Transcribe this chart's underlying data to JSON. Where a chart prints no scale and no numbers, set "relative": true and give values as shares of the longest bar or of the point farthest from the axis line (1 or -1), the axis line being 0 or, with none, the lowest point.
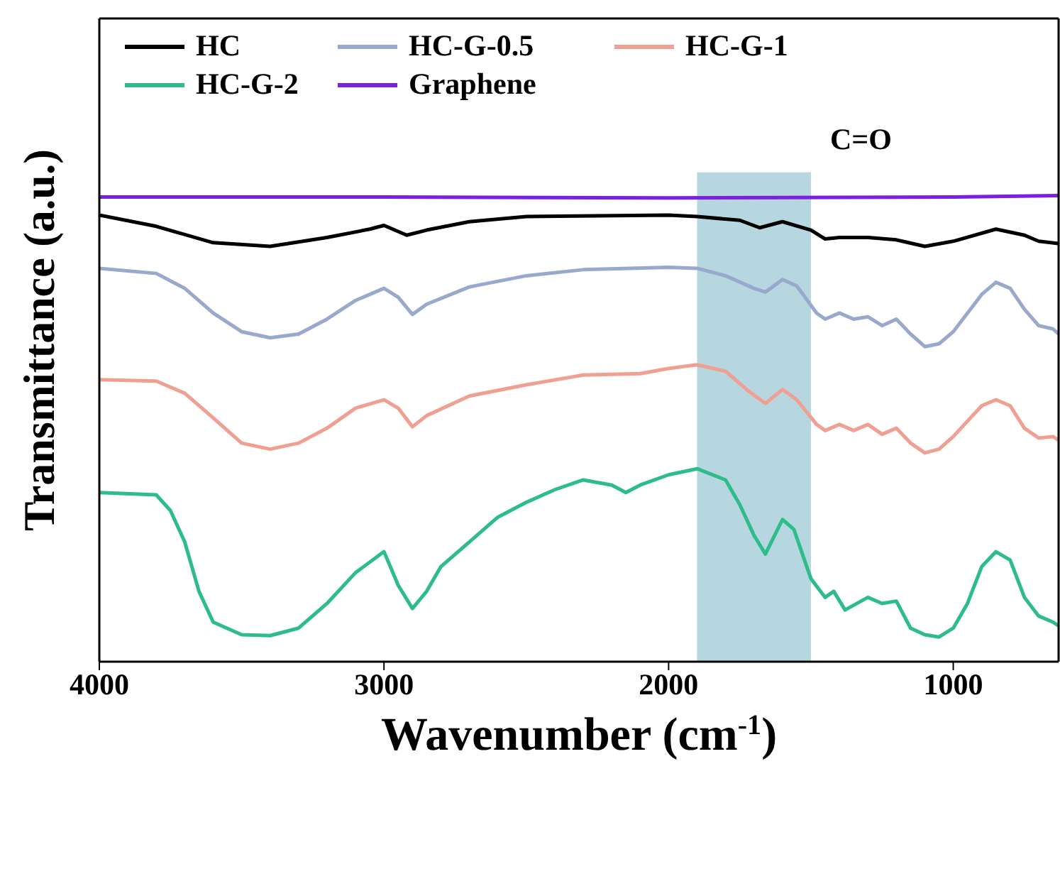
{
  "chart_data": {
    "type": "line",
    "relative": true,
    "xlabel": "Wavenumber (cm$^{-1}$)",
    "ylabel": "Transmittance (a.u.)",
    "xlim": [
      4000,
      630
    ],
    "xticks": [
      4000,
      3000,
      2000,
      1000
    ],
    "legend": "top",
    "bands": [
      {
        "axis": "x",
        "from": 1900,
        "to": 1500,
        "label": "C=O",
        "color": "#a9cfdb"
      }
    ],
    "series": [
      {
        "name": "HC",
        "color": "#000000",
        "x": [
          4000,
          3800,
          3600,
          3400,
          3200,
          3050,
          3000,
          2920,
          2850,
          2700,
          2500,
          2000,
          1900,
          1750,
          1680,
          1600,
          1500,
          1450,
          1400,
          1300,
          1200,
          1100,
          1000,
          850,
          750,
          700,
          630
        ],
        "values": [
          0.958,
          0.934,
          0.899,
          0.891,
          0.91,
          0.928,
          0.936,
          0.915,
          0.926,
          0.944,
          0.955,
          0.958,
          0.955,
          0.947,
          0.931,
          0.944,
          0.926,
          0.907,
          0.91,
          0.91,
          0.905,
          0.891,
          0.902,
          0.928,
          0.915,
          0.902,
          0.897
        ]
      },
      {
        "name": "HC-G-0.5",
        "color": "#99a9cc",
        "x": [
          4000,
          3800,
          3700,
          3600,
          3500,
          3400,
          3300,
          3200,
          3100,
          3000,
          2950,
          2900,
          2850,
          2700,
          2500,
          2300,
          2000,
          1900,
          1800,
          1700,
          1660,
          1600,
          1550,
          1480,
          1450,
          1400,
          1350,
          1300,
          1250,
          1200,
          1150,
          1100,
          1050,
          1000,
          900,
          850,
          800,
          750,
          700,
          650,
          630
        ],
        "values": [
          0.844,
          0.833,
          0.801,
          0.748,
          0.708,
          0.695,
          0.703,
          0.735,
          0.775,
          0.801,
          0.782,
          0.745,
          0.767,
          0.804,
          0.828,
          0.841,
          0.846,
          0.844,
          0.828,
          0.801,
          0.793,
          0.82,
          0.806,
          0.748,
          0.735,
          0.748,
          0.735,
          0.74,
          0.721,
          0.735,
          0.703,
          0.676,
          0.682,
          0.708,
          0.788,
          0.814,
          0.801,
          0.756,
          0.721,
          0.714,
          0.703
        ]
      },
      {
        "name": "HC-G-1",
        "color": "#f0a092",
        "x": [
          4000,
          3800,
          3700,
          3600,
          3500,
          3400,
          3300,
          3200,
          3100,
          3000,
          2950,
          2900,
          2850,
          2700,
          2500,
          2300,
          2100,
          2000,
          1900,
          1800,
          1720,
          1660,
          1600,
          1550,
          1480,
          1450,
          1400,
          1350,
          1300,
          1250,
          1200,
          1150,
          1100,
          1050,
          1000,
          900,
          850,
          800,
          750,
          700,
          650,
          630
        ],
        "values": [
          0.605,
          0.602,
          0.576,
          0.523,
          0.469,
          0.456,
          0.469,
          0.501,
          0.544,
          0.562,
          0.544,
          0.504,
          0.528,
          0.57,
          0.594,
          0.615,
          0.618,
          0.629,
          0.637,
          0.623,
          0.581,
          0.554,
          0.584,
          0.562,
          0.509,
          0.496,
          0.509,
          0.496,
          0.509,
          0.488,
          0.501,
          0.469,
          0.448,
          0.456,
          0.483,
          0.549,
          0.562,
          0.549,
          0.501,
          0.48,
          0.483,
          0.475
        ]
      },
      {
        "name": "HC-G-2",
        "color": "#2ebd8a",
        "x": [
          4000,
          3800,
          3750,
          3700,
          3650,
          3600,
          3500,
          3400,
          3300,
          3200,
          3100,
          3000,
          2950,
          2900,
          2850,
          2800,
          2700,
          2600,
          2500,
          2400,
          2300,
          2200,
          2150,
          2100,
          2000,
          1900,
          1800,
          1750,
          1700,
          1660,
          1600,
          1560,
          1500,
          1450,
          1420,
          1380,
          1300,
          1250,
          1200,
          1150,
          1100,
          1050,
          1000,
          950,
          900,
          850,
          800,
          750,
          700,
          650,
          630
        ],
        "values": [
          0.363,
          0.358,
          0.324,
          0.257,
          0.151,
          0.085,
          0.058,
          0.056,
          0.072,
          0.125,
          0.191,
          0.236,
          0.164,
          0.114,
          0.151,
          0.204,
          0.257,
          0.31,
          0.342,
          0.369,
          0.39,
          0.379,
          0.363,
          0.379,
          0.401,
          0.414,
          0.39,
          0.337,
          0.271,
          0.231,
          0.305,
          0.284,
          0.178,
          0.138,
          0.151,
          0.111,
          0.138,
          0.125,
          0.13,
          0.072,
          0.058,
          0.053,
          0.072,
          0.125,
          0.204,
          0.236,
          0.218,
          0.138,
          0.098,
          0.085,
          0.077
        ]
      },
      {
        "name": "Graphene",
        "color": "#7b1fe0",
        "x": [
          4000,
          3000,
          2000,
          1000,
          630
        ],
        "values": [
          0.997,
          0.997,
          0.995,
          0.997,
          1
        ]
      }
    ]
  }
}
